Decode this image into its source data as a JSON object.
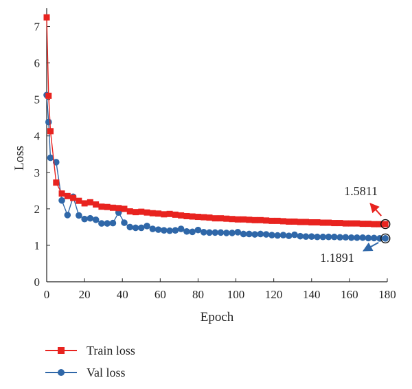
{
  "chart_data": {
    "type": "line",
    "xlabel": "Epoch",
    "ylabel": "Loss",
    "xlim": [
      0,
      180
    ],
    "ylim": [
      0,
      7.5
    ],
    "xticks": [
      0,
      20,
      40,
      60,
      80,
      100,
      120,
      140,
      160,
      180
    ],
    "yticks": [
      0,
      1,
      2,
      3,
      4,
      5,
      6,
      7
    ],
    "grid": false,
    "legend": "bottom-left",
    "series": [
      {
        "name": "Train loss",
        "color": "#e8231f",
        "marker": "square",
        "x": [
          0,
          1,
          2,
          5,
          8,
          11,
          14,
          17,
          20,
          23,
          26,
          29,
          32,
          35,
          38,
          41,
          44,
          47,
          50,
          53,
          56,
          59,
          62,
          65,
          68,
          71,
          74,
          77,
          80,
          83,
          86,
          89,
          92,
          95,
          98,
          101,
          104,
          107,
          110,
          113,
          116,
          119,
          122,
          125,
          128,
          131,
          134,
          137,
          140,
          143,
          146,
          149,
          152,
          155,
          158,
          161,
          164,
          167,
          170,
          173,
          176,
          179
        ],
        "y": [
          7.25,
          5.1,
          4.13,
          2.72,
          2.42,
          2.35,
          2.3,
          2.22,
          2.15,
          2.18,
          2.12,
          2.06,
          2.05,
          2.03,
          2.02,
          2.0,
          1.93,
          1.91,
          1.92,
          1.9,
          1.88,
          1.87,
          1.85,
          1.86,
          1.84,
          1.82,
          1.8,
          1.79,
          1.78,
          1.77,
          1.76,
          1.74,
          1.74,
          1.73,
          1.72,
          1.71,
          1.71,
          1.7,
          1.69,
          1.69,
          1.68,
          1.67,
          1.67,
          1.66,
          1.65,
          1.65,
          1.64,
          1.64,
          1.63,
          1.63,
          1.62,
          1.62,
          1.61,
          1.61,
          1.6,
          1.6,
          1.6,
          1.59,
          1.59,
          1.58,
          1.58,
          1.58
        ]
      },
      {
        "name": "Val loss",
        "color": "#2f67a8",
        "marker": "circle",
        "x": [
          0,
          1,
          2,
          5,
          8,
          11,
          14,
          17,
          20,
          23,
          26,
          29,
          32,
          35,
          38,
          41,
          44,
          47,
          50,
          53,
          56,
          59,
          62,
          65,
          68,
          71,
          74,
          77,
          80,
          83,
          86,
          89,
          92,
          95,
          98,
          101,
          104,
          107,
          110,
          113,
          116,
          119,
          122,
          125,
          128,
          131,
          134,
          137,
          140,
          143,
          146,
          149,
          152,
          155,
          158,
          161,
          164,
          167,
          170,
          173,
          176,
          179
        ],
        "y": [
          5.12,
          4.38,
          3.4,
          3.28,
          2.23,
          1.83,
          2.33,
          1.82,
          1.72,
          1.74,
          1.7,
          1.6,
          1.6,
          1.61,
          1.9,
          1.62,
          1.5,
          1.48,
          1.48,
          1.53,
          1.45,
          1.43,
          1.41,
          1.4,
          1.41,
          1.45,
          1.38,
          1.37,
          1.42,
          1.36,
          1.35,
          1.35,
          1.35,
          1.34,
          1.34,
          1.36,
          1.31,
          1.31,
          1.3,
          1.31,
          1.3,
          1.28,
          1.27,
          1.28,
          1.26,
          1.29,
          1.25,
          1.24,
          1.24,
          1.23,
          1.23,
          1.23,
          1.23,
          1.22,
          1.22,
          1.21,
          1.21,
          1.21,
          1.2,
          1.2,
          1.19,
          1.19
        ]
      }
    ],
    "annotations": [
      {
        "text": "1.5811",
        "series": 0,
        "x": 179,
        "y": 1.5811
      },
      {
        "text": "1.1891",
        "series": 1,
        "x": 179,
        "y": 1.1891
      }
    ]
  }
}
